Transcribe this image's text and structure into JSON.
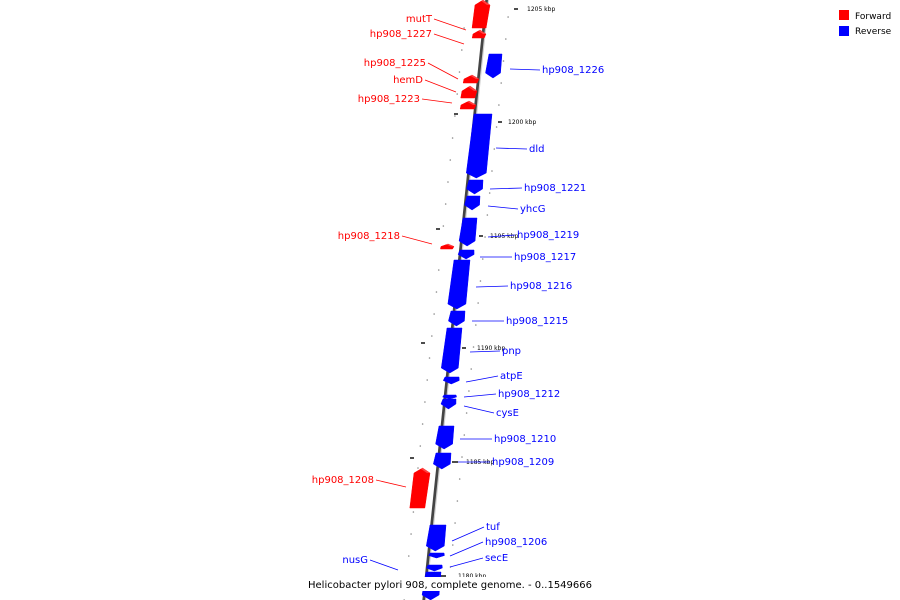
{
  "legend": {
    "forward_label": "Forward",
    "reverse_label": "Reverse",
    "forward_color": "#ff0000",
    "reverse_color": "#0000ff"
  },
  "caption": "Helicobacter pylori 908, complete genome. - 0..1549666",
  "ticks": [
    {
      "label": "1205 kbp"
    },
    {
      "label": "1200 kbp"
    },
    {
      "label": "1195 kbp"
    },
    {
      "label": "1190 kbp"
    },
    {
      "label": "1185 kbp"
    },
    {
      "label": "1180 kbp"
    }
  ],
  "genes": [
    {
      "label": "mutT",
      "strand": "forward"
    },
    {
      "label": "hp908_1227",
      "strand": "forward"
    },
    {
      "label": "hp908_1226",
      "strand": "reverse"
    },
    {
      "label": "hp908_1225",
      "strand": "forward"
    },
    {
      "label": "hemD",
      "strand": "forward"
    },
    {
      "label": "hp908_1223",
      "strand": "forward"
    },
    {
      "label": "dld",
      "strand": "reverse"
    },
    {
      "label": "hp908_1221",
      "strand": "reverse"
    },
    {
      "label": "yhcG",
      "strand": "reverse"
    },
    {
      "label": "hp908_1219",
      "strand": "reverse"
    },
    {
      "label": "hp908_1218",
      "strand": "forward"
    },
    {
      "label": "hp908_1217",
      "strand": "reverse"
    },
    {
      "label": "hp908_1216",
      "strand": "reverse"
    },
    {
      "label": "hp908_1215",
      "strand": "reverse"
    },
    {
      "label": "pnp",
      "strand": "reverse"
    },
    {
      "label": "atpE",
      "strand": "reverse"
    },
    {
      "label": "hp908_1212",
      "strand": "reverse"
    },
    {
      "label": "cysE",
      "strand": "reverse"
    },
    {
      "label": "hp908_1210",
      "strand": "reverse"
    },
    {
      "label": "hp908_1209",
      "strand": "reverse"
    },
    {
      "label": "hp908_1208",
      "strand": "forward"
    },
    {
      "label": "tuf",
      "strand": "reverse"
    },
    {
      "label": "hp908_1206",
      "strand": "reverse"
    },
    {
      "label": "secE",
      "strand": "reverse"
    },
    {
      "label": "nusG",
      "strand": "reverse"
    }
  ]
}
